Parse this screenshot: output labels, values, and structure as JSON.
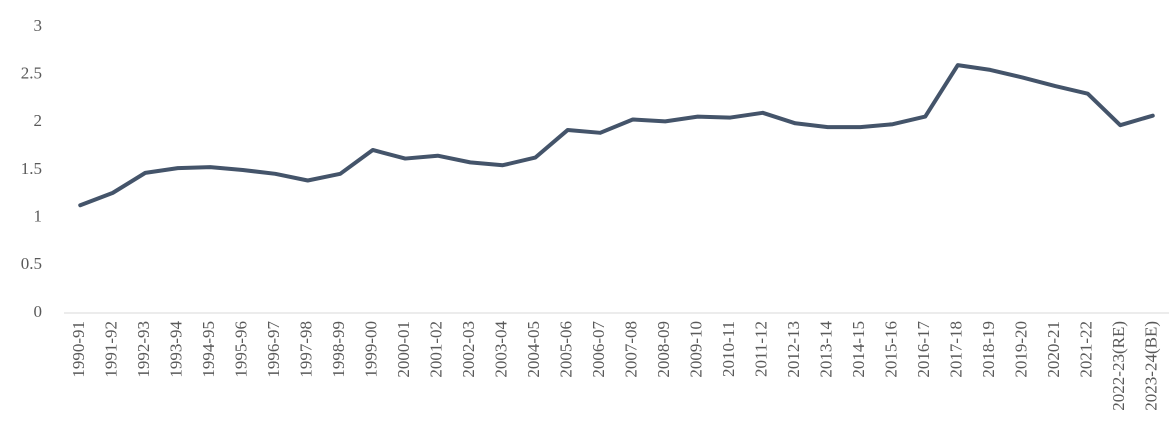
{
  "chart_data": {
    "type": "line",
    "categories": [
      "1990-91",
      "1991-92",
      "1992-93",
      "1993-94",
      "1994-95",
      "1995-96",
      "1996-97",
      "1997-98",
      "1998-99",
      "1999-00",
      "2000-01",
      "2001-02",
      "2002-03",
      "2003-04",
      "2004-05",
      "2005-06",
      "2006-07",
      "2007-08",
      "2008-09",
      "2009-10",
      "2010-11",
      "2011-12",
      "2012-13",
      "2013-14",
      "2014-15",
      "2015-16",
      "2016-17",
      "2017-18",
      "2018-19",
      "2019-20",
      "2020-21",
      "2021-22",
      "2022-23(RE)",
      "2023-24(BE)"
    ],
    "values": [
      1.13,
      1.26,
      1.47,
      1.52,
      1.53,
      1.5,
      1.46,
      1.39,
      1.46,
      1.71,
      1.62,
      1.65,
      1.58,
      1.55,
      1.63,
      1.92,
      1.89,
      2.03,
      2.01,
      2.06,
      2.05,
      2.1,
      1.99,
      1.95,
      1.95,
      1.98,
      2.06,
      2.6,
      2.55,
      2.47,
      2.38,
      2.3,
      1.97,
      2.07
    ],
    "color": "#44546a",
    "ylim": [
      0,
      3
    ],
    "yticks": [
      0,
      0.5,
      1,
      1.5,
      2,
      2.5,
      3
    ],
    "grid": false
  }
}
